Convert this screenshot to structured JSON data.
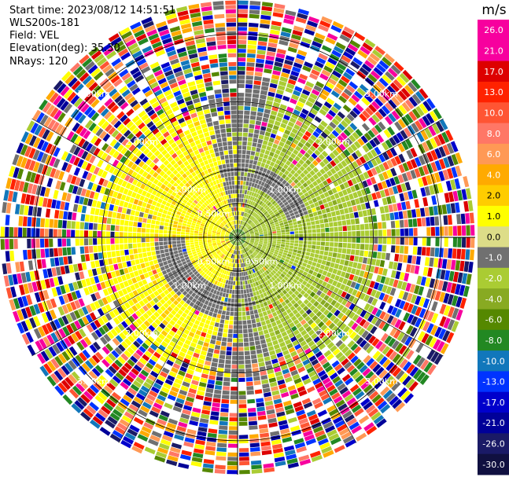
{
  "header": {
    "start_time": "Start time: 2023/08/12 14:51:51",
    "instrument": "WLS200s-181",
    "field": "Field: VEL",
    "elevation": "Elevation(deg): 35.30",
    "nrays": "NRays: 120"
  },
  "chart_data": {
    "type": "heatmap",
    "projection": "polar",
    "title": "",
    "field": "VEL",
    "n_rays": 120,
    "elevation_deg": 35.3,
    "range_rings_km": [
      0.5,
      1.0,
      2.0,
      3.0
    ],
    "ring_labels": [
      {
        "text": "0.50km",
        "range": 0.5,
        "angles_deg": [
          135,
          225,
          315
        ]
      },
      {
        "text": "1.00km",
        "range": 1.0,
        "angles_deg": [
          45,
          135,
          225,
          315
        ]
      },
      {
        "text": "2.00km",
        "range": 2.0,
        "angles_deg": [
          45,
          135,
          225,
          315
        ]
      },
      {
        "text": "3.00km",
        "range": 3.0,
        "angles_deg": [
          45,
          135,
          225,
          315
        ]
      }
    ],
    "max_range_km": 3.5,
    "spokes_deg": [
      0,
      30,
      60,
      90,
      120,
      150,
      180,
      210,
      240,
      270,
      300,
      330
    ],
    "regions": [
      {
        "name": "positive-west",
        "range_km": [
          0.3,
          1.8
        ],
        "azimuth_deg": [
          180,
          360
        ],
        "value_ms": 2.0
      },
      {
        "name": "negative-east",
        "range_km": [
          0.3,
          1.8
        ],
        "azimuth_deg": [
          0,
          180
        ],
        "value_ms": -2.0
      },
      {
        "name": "near-zero-band",
        "range_km": [
          0.5,
          1.6
        ],
        "value_ms": 0.0
      },
      {
        "name": "noise-outer",
        "range_km": [
          2.2,
          3.5
        ],
        "value_ms": "mixed"
      }
    ],
    "colorbar": {
      "unit": "m/s",
      "ticks": [
        "26.0",
        "21.0",
        "17.0",
        "13.0",
        "10.0",
        "8.0",
        "6.0",
        "4.0",
        "2.0",
        "1.0",
        "0.0",
        "-1.0",
        "-2.0",
        "-4.0",
        "-6.0",
        "-8.0",
        "-10.0",
        "-13.0",
        "-17.0",
        "-21.0",
        "-26.0",
        "-30.0"
      ],
      "colors": [
        "#f7009e",
        "#f7009e",
        "#dd0000",
        "#ff2200",
        "#ff5533",
        "#ff7766",
        "#ff9955",
        "#ffaa00",
        "#ffcc00",
        "#ffff00",
        "#dddd88",
        "#707070",
        "#aacc33",
        "#88aa22",
        "#558800",
        "#228822",
        "#1177bb",
        "#0033ff",
        "#0000cc",
        "#000099",
        "#1a1a66",
        "#101040"
      ]
    }
  }
}
